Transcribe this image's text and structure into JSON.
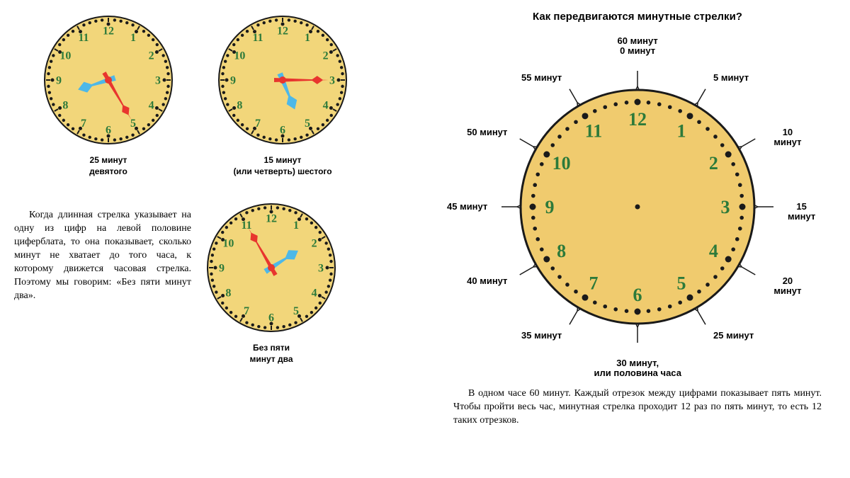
{
  "colors": {
    "face": "#f2d67a",
    "face_big": "#f0cb6e",
    "outline": "#1a1a1a",
    "numeral": "#2d7a3a",
    "tick": "#1a1a1a",
    "hour_hand": "#4db8e8",
    "minute_hand": "#e8352e",
    "center": "#e8352e",
    "text": "#000000"
  },
  "small_clock": {
    "radius": 90,
    "outline_w": 2,
    "numeral_fontsize": 16,
    "numeral_r": 70,
    "tick_major_r1": 82,
    "tick_major_r2": 88,
    "tick_minor_r": 85,
    "tick_minor_size": 2.2,
    "hour_len": 45,
    "minute_len": 65
  },
  "clocks": [
    {
      "caption": "25 минут\nдевятого",
      "hour_angle": 252.5,
      "minute_angle": 150
    },
    {
      "caption": "15 минут\n(или четверть) шестого",
      "hour_angle": 157.5,
      "minute_angle": 90
    },
    {
      "caption": "Без пяти\nминут два",
      "hour_angle": 57.5,
      "minute_angle": 330
    }
  ],
  "left_paragraph": "Когда длинная стрелка указывает на одну из цифр на левой половине циферблата, то она показывает, сколько минут не хватает до того часа, к которому движется часовая стрелка. Поэтому мы говорим: «Без пяти минут два».",
  "right_title": "Как передвигаются минутные стрелки?",
  "big_clock": {
    "radius": 165,
    "outline_w": 3,
    "numeral_fontsize": 26,
    "numeral_r": 124,
    "tick_dot_r": 148,
    "tick_dot_major": 4.5,
    "tick_dot_minor": 2.8,
    "label_r": 210
  },
  "minute_labels": [
    {
      "angle": 0,
      "text": "60 минут\n0 минут",
      "align": "center"
    },
    {
      "angle": 30,
      "text": "5 минут",
      "align": "left"
    },
    {
      "angle": 60,
      "text": "10 минут",
      "align": "left"
    },
    {
      "angle": 90,
      "text": "15 минут",
      "align": "left"
    },
    {
      "angle": 120,
      "text": "20 минут",
      "align": "left"
    },
    {
      "angle": 150,
      "text": "25 минут",
      "align": "left"
    },
    {
      "angle": 180,
      "text": "30 минут,\nили половина часа",
      "align": "center"
    },
    {
      "angle": 210,
      "text": "35 минут",
      "align": "right"
    },
    {
      "angle": 240,
      "text": "40 минут",
      "align": "right"
    },
    {
      "angle": 270,
      "text": "45 минут",
      "align": "right"
    },
    {
      "angle": 300,
      "text": "50 минут",
      "align": "right"
    },
    {
      "angle": 330,
      "text": "55 минут",
      "align": "right"
    }
  ],
  "right_paragraph": "В одном часе 60 минут. Каждый отрезок между цифрами показывает пять минут. Чтобы пройти весь час, минутная стрелка проходит 12 раз по пять минут, то есть 12 таких отрезков."
}
